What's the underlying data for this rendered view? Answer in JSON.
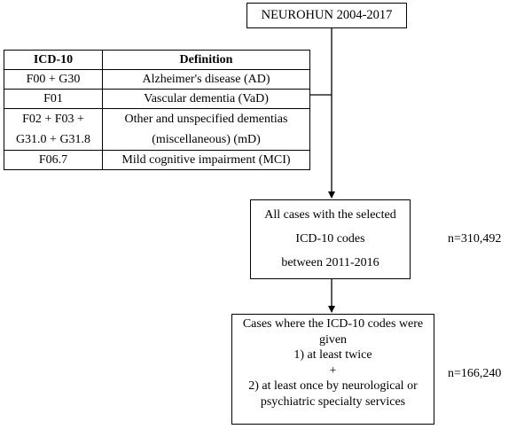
{
  "top_box": {
    "label": "NEUROHUN 2004-2017"
  },
  "icd_table": {
    "headers": [
      "ICD-10",
      "Definition"
    ],
    "rows": [
      {
        "code_lines": [
          "F00 + G30"
        ],
        "definition_lines": [
          "Alzheimer's disease (AD)"
        ]
      },
      {
        "code_lines": [
          "F01"
        ],
        "definition_lines": [
          "Vascular dementia (VaD)"
        ]
      },
      {
        "code_lines": [
          "F02 + F03 +",
          "G31.0 + G31.8"
        ],
        "definition_lines": [
          "Other and unspecified dementias",
          "(miscellaneous) (mD)"
        ]
      },
      {
        "code_lines": [
          "F06.7"
        ],
        "definition_lines": [
          "Mild cognitive impairment (MCI)"
        ]
      }
    ]
  },
  "cases_box": {
    "lines": [
      "All cases with the selected",
      "ICD-10 codes",
      "between 2011-2016"
    ],
    "count": "n=310,492"
  },
  "final_box": {
    "lines": [
      "Cases where the ICD-10 codes were",
      "given",
      "1) at least twice",
      "+",
      "2) at least once by neurological or",
      "psychiatric specialty services"
    ],
    "count": "n=166,240"
  }
}
